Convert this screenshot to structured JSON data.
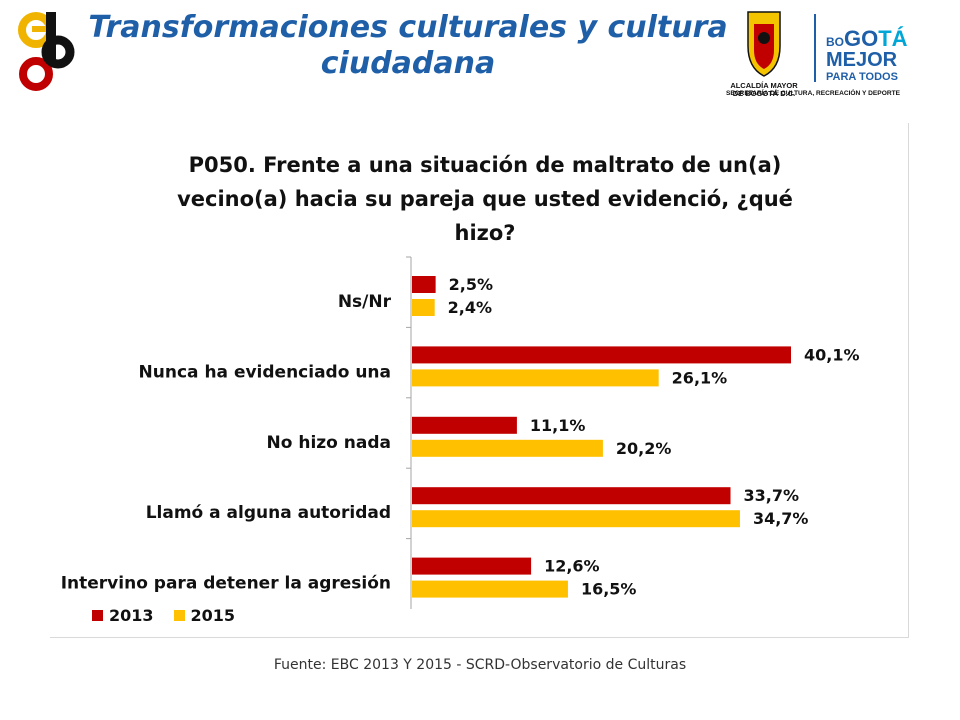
{
  "header": {
    "title": "Transformaciones culturales y cultura ciudadana",
    "right_logo": {
      "line1": "ALCALDÍA MAYOR",
      "line2": "DE BOGOTÁ D.C.",
      "brand_small": "BO",
      "brand_go": "GO",
      "brand_ta": "TÁ",
      "brand_mejor": "MEJOR",
      "brand_para": "PARA TODOS",
      "secretaria": "SECRETARÍA DE CULTURA, RECREACIÓN Y DEPORTE"
    }
  },
  "colors": {
    "series_2013": "#c00000",
    "series_2015": "#ffc000",
    "title_blue": "#1f5fa8"
  },
  "chart_data": {
    "type": "bar",
    "orientation": "horizontal",
    "title": "P050. Frente a una situación de maltrato de un(a) vecino(a) hacia su pareja que usted evidenció, ¿qué hizo?",
    "categories": [
      "Ns/Nr",
      "Nunca ha evidenciado una",
      "No hizo nada",
      "Llamó a alguna autoridad",
      "Intervino para detener la agresión"
    ],
    "series": [
      {
        "name": "2013",
        "values": [
          2.5,
          40.1,
          11.1,
          33.7,
          12.6
        ],
        "labels": [
          "2,5%",
          "40,1%",
          "11,1%",
          "33,7%",
          "12,6%"
        ]
      },
      {
        "name": "2015",
        "values": [
          2.4,
          26.1,
          20.2,
          34.7,
          16.5
        ],
        "labels": [
          "2,4%",
          "26,1%",
          "20,2%",
          "34,7%",
          "16,5%"
        ]
      }
    ],
    "xlim": [
      0,
      40.1
    ],
    "grid": false,
    "legend_position": "bottom-left"
  },
  "footer": {
    "source": "Fuente: EBC  2013 Y 2015 - SCRD-Observatorio  de Culturas"
  }
}
